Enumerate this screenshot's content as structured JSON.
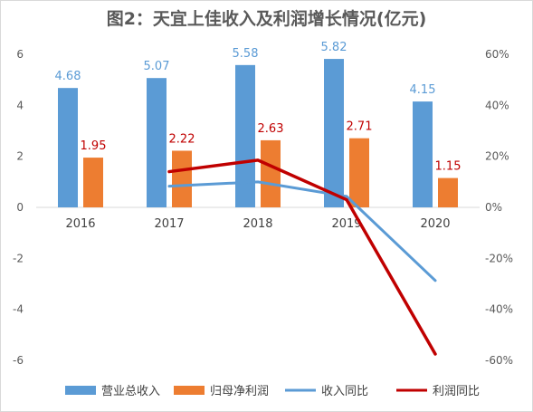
{
  "chart_data": {
    "type": "bar",
    "title": "图2：天宜上佳收入及利润增长情况(亿元)",
    "categories": [
      "2016",
      "2017",
      "2018",
      "2019",
      "2020"
    ],
    "y_left": {
      "ylim": [
        -6,
        6
      ],
      "ticks": [
        "6",
        "4",
        "2",
        "0",
        "-2",
        "-4",
        "-6"
      ],
      "tick_values": [
        6,
        4,
        2,
        0,
        -2,
        -4,
        -6
      ]
    },
    "y_right": {
      "ylim": [
        -60,
        60
      ],
      "ticks": [
        "60%",
        "40%",
        "20%",
        "0%",
        "-20%",
        "-40%",
        "-60%"
      ],
      "tick_values": [
        60,
        40,
        20,
        0,
        -20,
        -40,
        -60
      ]
    },
    "series": [
      {
        "name": "营业总收入",
        "kind": "bar",
        "axis": "left",
        "color": "#5b9bd5",
        "label_color": "#5b9bd5",
        "values": [
          4.68,
          5.07,
          5.58,
          5.82,
          4.15
        ],
        "labels": [
          "4.68",
          "5.07",
          "5.58",
          "5.82",
          "4.15"
        ]
      },
      {
        "name": "归母净利润",
        "kind": "bar",
        "axis": "left",
        "color": "#ed7d31",
        "label_color": "#c00000",
        "values": [
          1.95,
          2.22,
          2.63,
          2.71,
          1.15
        ],
        "labels": [
          "1.95",
          "2.22",
          "2.63",
          "2.71",
          "1.15"
        ]
      },
      {
        "name": "收入同比",
        "kind": "line",
        "axis": "right",
        "color": "#5b9bd5",
        "values": [
          null,
          8.3,
          10.0,
          4.3,
          -28.7
        ]
      },
      {
        "name": "利润同比",
        "kind": "line",
        "axis": "right",
        "color": "#c00000",
        "values": [
          null,
          14.0,
          18.5,
          3.0,
          -57.5
        ]
      }
    ],
    "legend_position": "bottom",
    "grid": false
  }
}
